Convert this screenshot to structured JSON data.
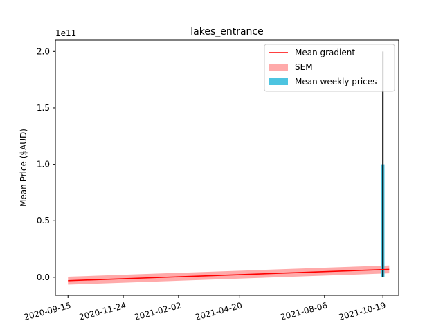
{
  "chart_data": {
    "type": "line",
    "title": "lakes_entrance",
    "xlabel": "",
    "ylabel": "Mean Price ($AUD)",
    "y_offset_label": "1e11",
    "y_scale": 100000000000,
    "xlim": [
      "2020-08-30",
      "2021-11-08"
    ],
    "ylim": [
      -16000000000,
      210000000000
    ],
    "x_ticks": [
      "2020-09-15",
      "2020-11-24",
      "2021-02-02",
      "2021-04-20",
      "2021-08-06",
      "2021-10-19"
    ],
    "y_ticks": [
      0,
      50000000000,
      100000000000,
      150000000000,
      200000000000
    ],
    "y_tick_labels": [
      "0.0",
      "0.5",
      "1.0",
      "1.5",
      "2.0"
    ],
    "grid": false,
    "legend_position": "top-right",
    "series": [
      {
        "name": "Mean gradient",
        "kind": "line",
        "color": "#ff0000",
        "x": [
          "2020-09-15",
          "2021-10-27"
        ],
        "y": [
          -3000000000,
          7000000000
        ]
      },
      {
        "name": "SEM",
        "kind": "band",
        "color": "#ffaaaa",
        "x": [
          "2020-09-15",
          "2021-10-27"
        ],
        "y_low": [
          -6500000000,
          3500000000
        ],
        "y_high": [
          500000000,
          10500000000
        ]
      },
      {
        "name": "Mean weekly prices",
        "kind": "bar",
        "color": "#4dc4e0",
        "x": [
          "2021-10-19"
        ],
        "values": [
          100000000000
        ],
        "bar_width_days": 4
      }
    ],
    "error_bars": {
      "color": "#000000",
      "x": [
        "2021-10-19"
      ],
      "y_low": [
        0
      ],
      "y_high": [
        200000000000
      ]
    }
  }
}
